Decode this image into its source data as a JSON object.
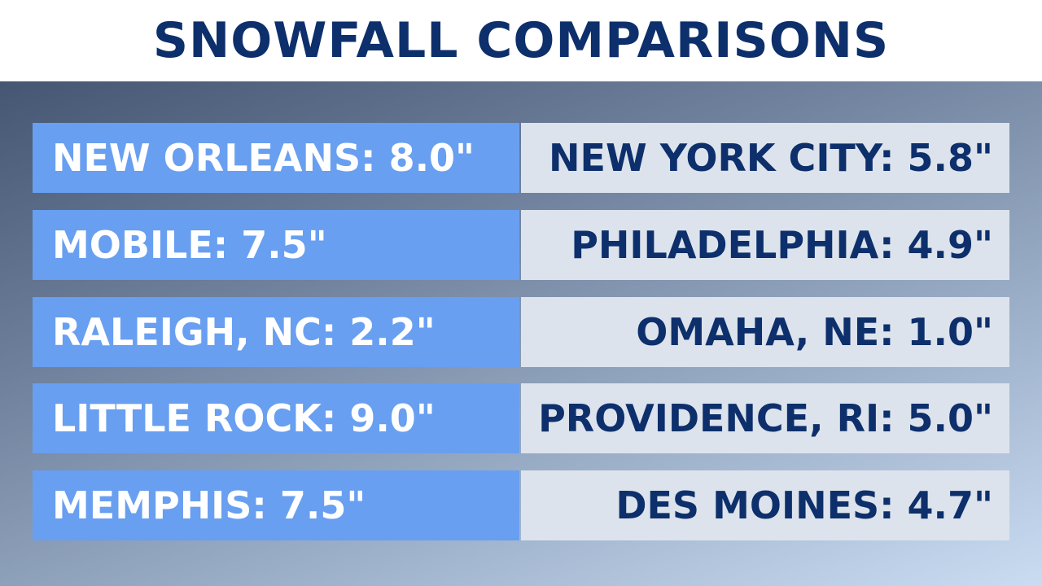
{
  "header": {
    "title": "SNOWFALL COMPARISONS"
  },
  "table": {
    "rows": [
      [
        "NEW ORLEANS: 8.0\"",
        "NEW YORK CITY: 5.8\""
      ],
      [
        "MOBILE: 7.5\"",
        "PHILADELPHIA: 4.9\""
      ],
      [
        "RALEIGH, NC: 2.2\"",
        "OMAHA, NE: 1.0\""
      ],
      [
        "LITTLE ROCK: 9.0\"",
        "PROVIDENCE, RI: 5.0\""
      ],
      [
        "MEMPHIS: 7.5\"",
        "DES MOINES: 4.7\""
      ]
    ]
  }
}
